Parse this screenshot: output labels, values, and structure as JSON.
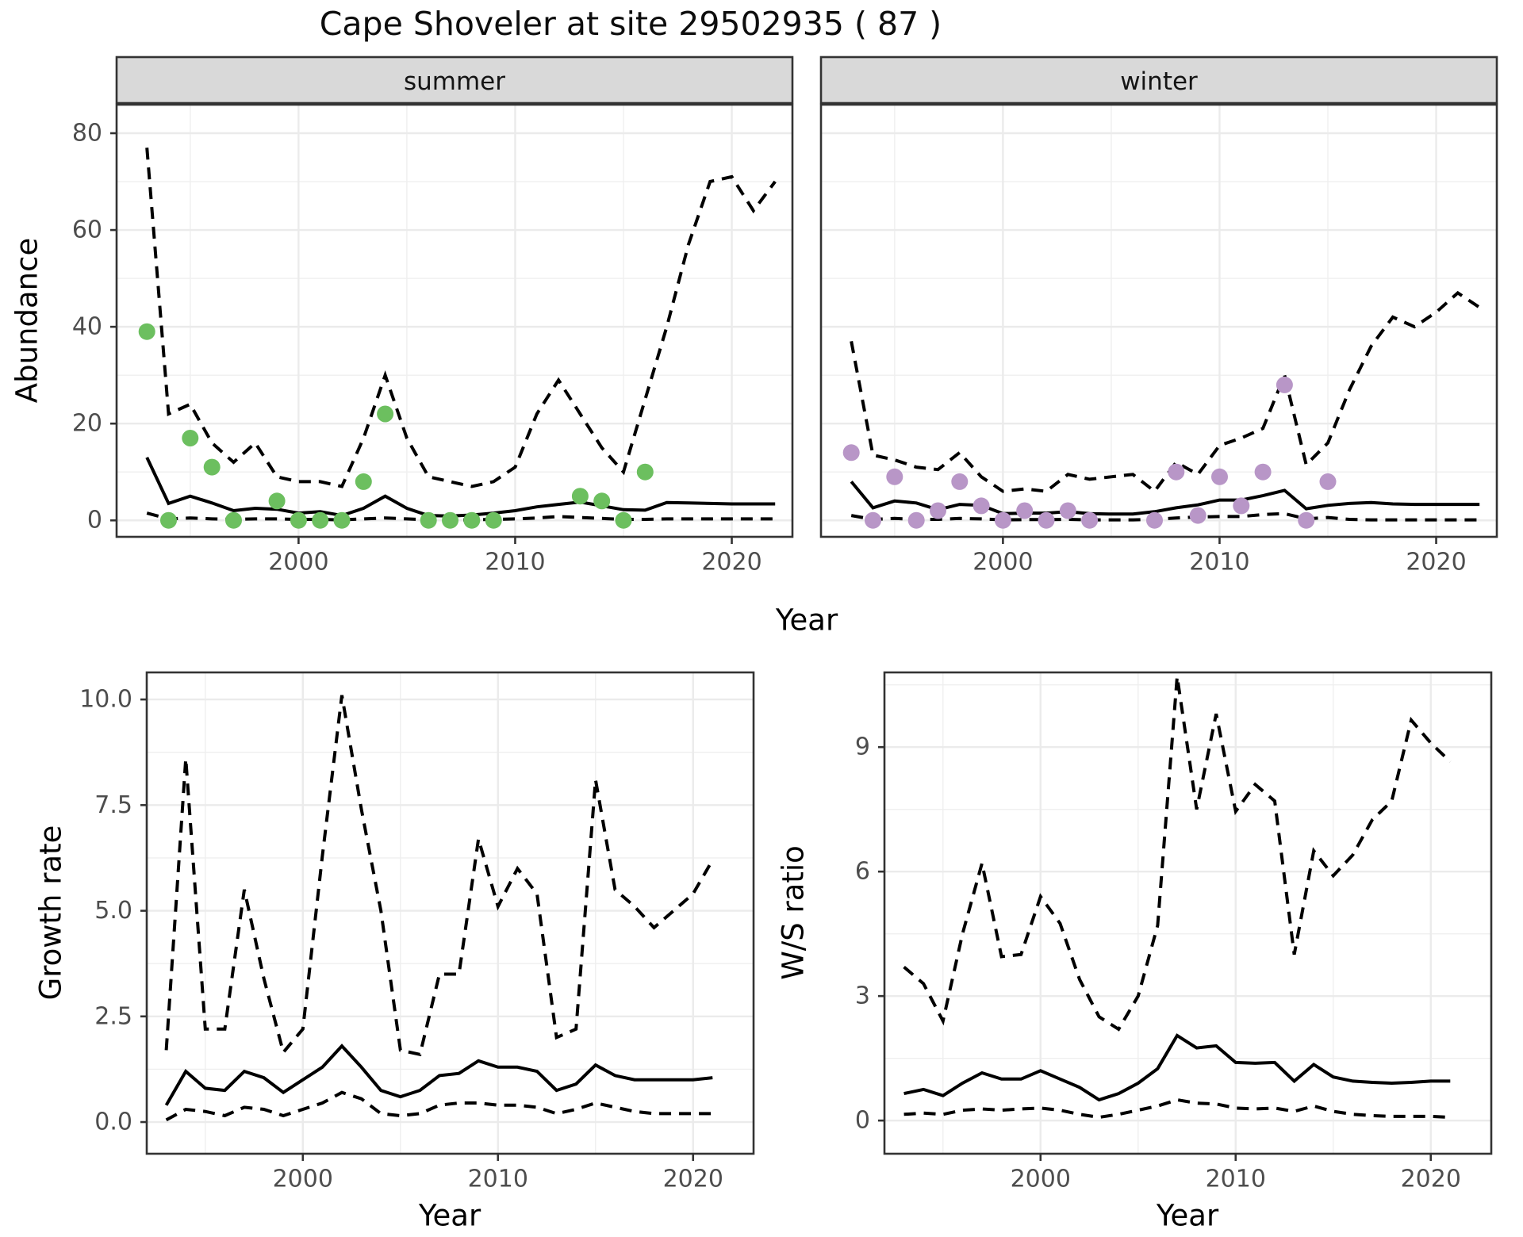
{
  "title": "Cape Shoveler at site 29502935 ( 87 )",
  "labels": {
    "year_axis": "Year",
    "abundance_axis": "Abundance",
    "growth_axis": "Growth rate",
    "ws_axis": "W/S ratio"
  },
  "facets": {
    "summer": "summer",
    "winter": "winter"
  },
  "colors": {
    "summer_point": "#6cbf5f",
    "winter_point": "#b896c7",
    "line": "#000000",
    "strip_bg": "#d9d9d9",
    "panel_border": "#333333",
    "grid_major": "#ebebeb",
    "grid_minor": "#efefef",
    "tick_label": "#4d4d4d"
  },
  "chart_data": [
    {
      "id": "abundance_summer",
      "type": "line",
      "facet": "summer",
      "xlabel": "Year",
      "ylabel": "Abundance",
      "xlim": [
        1991.6,
        2022.8
      ],
      "ylim": [
        -3.4,
        85.9
      ],
      "xticks": [
        2000,
        2010,
        2020
      ],
      "xticks_minor": [
        1995,
        2005,
        2015
      ],
      "yticks": [
        0,
        20,
        40,
        60,
        80
      ],
      "ytick_labels": [
        "0",
        "20",
        "40",
        "60",
        "80"
      ],
      "yticks_minor": [
        10,
        30,
        50,
        70
      ],
      "years": [
        1993,
        1994,
        1995,
        1996,
        1997,
        1998,
        1999,
        2000,
        2001,
        2002,
        2003,
        2004,
        2005,
        2006,
        2007,
        2008,
        2009,
        2010,
        2011,
        2012,
        2013,
        2014,
        2015,
        2016,
        2017,
        2018,
        2019,
        2020,
        2021,
        2022
      ],
      "series": [
        {
          "name": "median",
          "style": "solid",
          "values": [
            13,
            3.5,
            5,
            3.6,
            2,
            2.5,
            2.3,
            1.5,
            1.8,
            1,
            2.5,
            5,
            2.5,
            1,
            0.9,
            1.1,
            1.5,
            2,
            2.8,
            3.3,
            3.8,
            3,
            2.2,
            2.1,
            3.7,
            3.6,
            3.5,
            3.4,
            3.4,
            3.4
          ]
        },
        {
          "name": "ci_upper_97.5",
          "style": "dashed",
          "values": [
            77,
            22,
            24,
            16,
            12,
            16,
            9,
            8,
            8,
            7,
            17,
            30,
            17,
            9,
            8,
            7,
            8,
            11,
            22,
            29,
            22,
            15,
            10,
            25,
            40,
            57,
            70,
            71,
            64,
            70
          ]
        },
        {
          "name": "ci_lower_2.5",
          "style": "dashed",
          "values": [
            1.5,
            0.3,
            0.5,
            0.3,
            0.2,
            0.3,
            0.3,
            0.2,
            0.2,
            0.1,
            0.3,
            0.5,
            0.3,
            0.1,
            0.1,
            0.1,
            0.2,
            0.3,
            0.5,
            0.8,
            0.6,
            0.4,
            0.2,
            0.2,
            0.3,
            0.3,
            0.3,
            0.3,
            0.3,
            0.3
          ]
        }
      ],
      "points": {
        "name": "observed_summer_counts",
        "color": "#6cbf5f",
        "years": [
          1993,
          1994,
          1995,
          1996,
          1997,
          1999,
          2000,
          2001,
          2002,
          2003,
          2004,
          2006,
          2007,
          2008,
          2009,
          2013,
          2014,
          2015,
          2016
        ],
        "values": [
          39,
          0,
          17,
          11,
          0,
          4,
          0,
          0,
          0,
          8,
          22,
          0,
          0,
          0,
          0,
          5,
          4,
          0,
          10
        ]
      }
    },
    {
      "id": "abundance_winter",
      "type": "line",
      "facet": "winter",
      "xlabel": "Year",
      "ylabel": "Abundance",
      "xlim": [
        1991.6,
        2022.8
      ],
      "ylim": [
        -3.4,
        85.9
      ],
      "xticks": [
        2000,
        2010,
        2020
      ],
      "xticks_minor": [
        1995,
        2005,
        2015
      ],
      "yticks": [
        0,
        20,
        40,
        60,
        80
      ],
      "ytick_labels": [
        "0",
        "20",
        "40",
        "60",
        "80"
      ],
      "yticks_minor": [
        10,
        30,
        50,
        70
      ],
      "years": [
        1993,
        1994,
        1995,
        1996,
        1997,
        1998,
        1999,
        2000,
        2001,
        2002,
        2003,
        2004,
        2005,
        2006,
        2007,
        2008,
        2009,
        2010,
        2011,
        2012,
        2013,
        2014,
        2015,
        2016,
        2017,
        2018,
        2019,
        2020,
        2021,
        2022
      ],
      "series": [
        {
          "name": "median",
          "style": "solid",
          "values": [
            8,
            2.6,
            4,
            3.6,
            2.2,
            3.3,
            3.1,
            1.4,
            1.5,
            1.5,
            1.8,
            1.4,
            1.3,
            1.3,
            1.8,
            2.6,
            3.2,
            4.2,
            4.2,
            5.1,
            6.2,
            2.4,
            3.1,
            3.5,
            3.7,
            3.4,
            3.3,
            3.3,
            3.3,
            3.3
          ]
        },
        {
          "name": "ci_upper_97.5",
          "style": "dashed",
          "values": [
            37,
            13.5,
            12.5,
            11,
            10.5,
            14,
            9,
            6,
            6.5,
            6,
            9.5,
            8.5,
            9,
            9.5,
            6,
            12,
            9.5,
            15.5,
            17,
            19,
            30,
            11.5,
            16,
            27,
            36,
            42,
            40,
            43,
            47,
            44
          ]
        },
        {
          "name": "ci_lower_2.5",
          "style": "dashed",
          "values": [
            1,
            0.2,
            0.4,
            0.2,
            0.2,
            0.4,
            0.3,
            0.1,
            0.15,
            0.15,
            0.2,
            0.1,
            0.1,
            0.1,
            0.2,
            0.5,
            0.7,
            0.8,
            0.8,
            1.2,
            1.4,
            0.3,
            0.6,
            0.2,
            0.1,
            0.1,
            0.1,
            0.1,
            0.1,
            0.1
          ]
        }
      ],
      "points": {
        "name": "observed_winter_counts",
        "color": "#b896c7",
        "years": [
          1993,
          1994,
          1995,
          1996,
          1997,
          1998,
          1999,
          2000,
          2001,
          2002,
          2003,
          2004,
          2007,
          2008,
          2009,
          2010,
          2011,
          2012,
          2013,
          2014,
          2015
        ],
        "values": [
          14,
          0,
          9,
          0,
          2,
          8,
          3,
          0,
          2,
          0,
          2,
          0,
          0,
          10,
          1,
          9,
          3,
          10,
          28,
          0,
          8
        ]
      }
    },
    {
      "id": "growth_rate",
      "type": "line",
      "xlabel": "Year",
      "ylabel": "Growth rate",
      "xlim": [
        1992,
        2023.1
      ],
      "ylim": [
        -0.75,
        10.64
      ],
      "xticks": [
        2000,
        2010,
        2020
      ],
      "xticks_minor": [
        1995,
        2005,
        2015
      ],
      "yticks": [
        0,
        2.5,
        5,
        7.5,
        10
      ],
      "ytick_labels": [
        "0.0",
        "2.5",
        "5.0",
        "7.5",
        "10.0"
      ],
      "yticks_minor": [
        1.25,
        3.75,
        6.25,
        8.75
      ],
      "years": [
        1993,
        1994,
        1995,
        1996,
        1997,
        1998,
        1999,
        2000,
        2001,
        2002,
        2003,
        2004,
        2005,
        2006,
        2007,
        2008,
        2009,
        2010,
        2011,
        2012,
        2013,
        2014,
        2015,
        2016,
        2017,
        2018,
        2019,
        2020,
        2021
      ],
      "series": [
        {
          "name": "median",
          "style": "solid",
          "values": [
            0.4,
            1.2,
            0.8,
            0.75,
            1.2,
            1.05,
            0.7,
            1.0,
            1.3,
            1.8,
            1.3,
            0.75,
            0.6,
            0.75,
            1.1,
            1.15,
            1.45,
            1.3,
            1.3,
            1.2,
            0.75,
            0.9,
            1.35,
            1.1,
            1.0,
            1.0,
            1.0,
            1.0,
            1.05
          ]
        },
        {
          "name": "ci_upper_97.5",
          "style": "dashed",
          "values": [
            1.7,
            8.6,
            2.2,
            2.2,
            5.5,
            3.4,
            1.65,
            2.2,
            6.3,
            10.1,
            7.4,
            5.0,
            1.7,
            1.6,
            3.5,
            3.5,
            6.7,
            5.1,
            6.0,
            5.4,
            2.0,
            2.2,
            8.1,
            5.5,
            5.1,
            4.6,
            5.0,
            5.4,
            6.2
          ]
        },
        {
          "name": "ci_lower_2.5",
          "style": "dashed",
          "values": [
            0.05,
            0.3,
            0.25,
            0.15,
            0.35,
            0.3,
            0.15,
            0.3,
            0.45,
            0.7,
            0.55,
            0.2,
            0.15,
            0.2,
            0.4,
            0.45,
            0.45,
            0.4,
            0.4,
            0.35,
            0.2,
            0.3,
            0.45,
            0.35,
            0.25,
            0.2,
            0.2,
            0.2,
            0.2
          ]
        }
      ]
    },
    {
      "id": "ws_ratio",
      "type": "line",
      "xlabel": "Year",
      "ylabel": "W/S ratio",
      "xlim": [
        1992,
        2023.1
      ],
      "ylim": [
        -0.8,
        10.8
      ],
      "xticks": [
        2000,
        2010,
        2020
      ],
      "xticks_minor": [
        1995,
        2005,
        2015
      ],
      "yticks": [
        0,
        3,
        6,
        9
      ],
      "ytick_labels": [
        "0",
        "3",
        "6",
        "9"
      ],
      "yticks_minor": [
        1.5,
        4.5,
        7.5,
        10.5
      ],
      "years": [
        1993,
        1994,
        1995,
        1996,
        1997,
        1998,
        1999,
        2000,
        2001,
        2002,
        2003,
        2004,
        2005,
        2006,
        2007,
        2008,
        2009,
        2010,
        2011,
        2012,
        2013,
        2014,
        2015,
        2016,
        2017,
        2018,
        2019,
        2020,
        2021
      ],
      "series": [
        {
          "name": "median",
          "style": "solid",
          "values": [
            0.65,
            0.75,
            0.6,
            0.9,
            1.15,
            1.0,
            1.0,
            1.2,
            1.0,
            0.8,
            0.5,
            0.65,
            0.9,
            1.25,
            2.05,
            1.75,
            1.8,
            1.4,
            1.38,
            1.4,
            0.95,
            1.35,
            1.05,
            0.95,
            0.92,
            0.9,
            0.92,
            0.95,
            0.95
          ]
        },
        {
          "name": "ci_upper_97.5",
          "style": "dashed",
          "values": [
            3.7,
            3.3,
            2.4,
            4.5,
            6.2,
            3.95,
            4.0,
            5.4,
            4.75,
            3.4,
            2.5,
            2.2,
            3.0,
            4.7,
            10.7,
            7.5,
            9.8,
            7.45,
            8.1,
            7.7,
            4.0,
            6.5,
            5.9,
            6.4,
            7.25,
            7.7,
            9.65,
            9.1,
            8.65
          ]
        },
        {
          "name": "ci_lower_2.5",
          "style": "dashed",
          "values": [
            0.15,
            0.18,
            0.15,
            0.25,
            0.28,
            0.25,
            0.28,
            0.3,
            0.25,
            0.15,
            0.08,
            0.15,
            0.25,
            0.35,
            0.5,
            0.42,
            0.4,
            0.3,
            0.28,
            0.3,
            0.22,
            0.35,
            0.22,
            0.15,
            0.12,
            0.1,
            0.1,
            0.1,
            0.08
          ]
        }
      ]
    }
  ]
}
